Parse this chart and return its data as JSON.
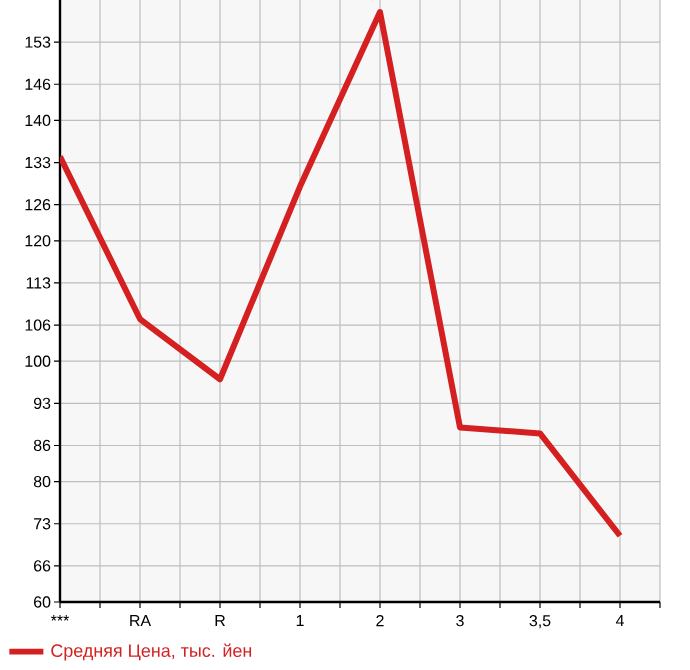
{
  "chart_data": {
    "type": "line",
    "categories": [
      "***",
      "RA",
      "R",
      "1",
      "2",
      "3",
      "3,5",
      "4"
    ],
    "series": [
      {
        "name": "Средняя Цена, тыс. йен",
        "color": "#d42020",
        "values": [
          134,
          107,
          97,
          129,
          158,
          89,
          88,
          71
        ]
      }
    ],
    "ylim": [
      60,
      160
    ],
    "yticks": [
      60,
      66,
      73,
      80,
      86,
      93,
      100,
      106,
      113,
      120,
      126,
      133,
      140,
      146,
      153
    ],
    "grid": true,
    "legend": "bottom left",
    "marker": "none",
    "line_style": "solid"
  }
}
